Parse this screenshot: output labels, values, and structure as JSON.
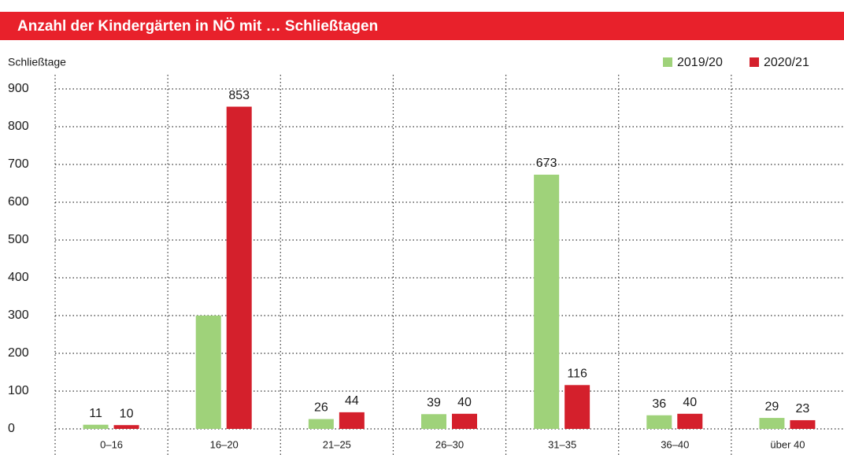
{
  "chart_data": {
    "type": "bar",
    "title": "Anzahl der Kindergärten in NÖ mit … Schließtagen",
    "y_label": "Schließtage",
    "categories": [
      "0–16",
      "16–20",
      "21–25",
      "26–30",
      "31–35",
      "36–40",
      "über 40"
    ],
    "series": [
      {
        "name": "2019/20",
        "color": "#9fd27a",
        "values": [
          11,
          300,
          26,
          39,
          673,
          36,
          29
        ],
        "value_labels": [
          "11",
          null,
          "26",
          "39",
          "673",
          "36",
          "29"
        ]
      },
      {
        "name": "2020/21",
        "color": "#d4202c",
        "values": [
          10,
          853,
          44,
          40,
          116,
          40,
          23
        ],
        "value_labels": [
          "10",
          "853",
          "44",
          "40",
          "116",
          "40",
          "23"
        ]
      }
    ],
    "ylim": [
      0,
      900
    ],
    "yticks": [
      0,
      100,
      200,
      300,
      400,
      500,
      600,
      700,
      800,
      900
    ],
    "grid": true,
    "legend": "top-right"
  }
}
